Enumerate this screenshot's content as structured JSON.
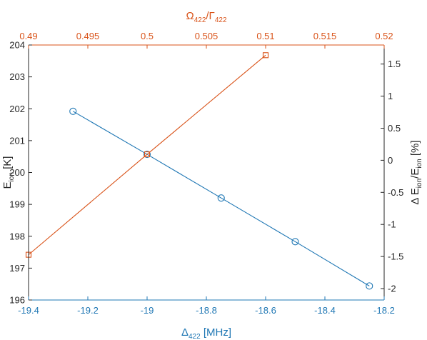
{
  "chart_data": {
    "type": "line",
    "colors": {
      "blue": "#1f77b4",
      "orange": "#d95319",
      "axis": "#262626"
    },
    "bottom_axis": {
      "label_main": "Δ",
      "label_sub": "422",
      "label_unit": " [MHz]",
      "range": [
        -19.4,
        -18.2
      ],
      "ticks": [
        -19.4,
        -19.2,
        -19,
        -18.8,
        -18.6,
        -18.4,
        -18.2
      ],
      "tick_labels": [
        "-19.4",
        "-19.2",
        "-19",
        "-18.8",
        "-18.6",
        "-18.4",
        "-18.2"
      ],
      "color": "#1f77b4"
    },
    "top_axis": {
      "label_main": "Ω",
      "label_sub": "422",
      "label_mid": "/Γ",
      "label_sub2": "422",
      "range": [
        0.49,
        0.52
      ],
      "ticks": [
        0.49,
        0.495,
        0.5,
        0.505,
        0.51,
        0.515,
        0.52
      ],
      "tick_labels": [
        "0.49",
        "0.495",
        "0.5",
        "0.505",
        "0.51",
        "0.515",
        "0.52"
      ],
      "color": "#d95319"
    },
    "left_axis": {
      "label_main": "E",
      "label_sub": "ion",
      "label_unit": " [K]",
      "range": [
        196,
        204
      ],
      "ticks": [
        196,
        197,
        198,
        199,
        200,
        201,
        202,
        203,
        204
      ],
      "tick_labels": [
        "196",
        "197",
        "198",
        "199",
        "200",
        "201",
        "202",
        "203",
        "204"
      ]
    },
    "right_axis": {
      "label_a": "Δ E",
      "label_sub1": "ion",
      "label_b": "/E",
      "label_sub2": "ion",
      "label_c": " [%]",
      "range": [
        -2.178,
        1.797
      ],
      "ticks": [
        -2,
        -1.5,
        -1,
        -0.5,
        0,
        0.5,
        1,
        1.5
      ],
      "tick_labels": [
        "-2",
        "-1.5",
        "-1",
        "-0.5",
        "0",
        "0.5",
        "1",
        "1.5"
      ]
    },
    "series": [
      {
        "axis": "bottom-left",
        "marker": "circle",
        "color": "#1f77b4",
        "x": [
          -19.25,
          -19,
          -18.75,
          -18.5,
          -18.25
        ],
        "y": [
          201.92,
          200.57,
          199.2,
          197.83,
          196.44
        ]
      },
      {
        "axis": "top-left",
        "marker": "square",
        "color": "#d95319",
        "x": [
          0.49,
          0.5,
          0.51
        ],
        "y": [
          197.42,
          200.57,
          203.68
        ]
      }
    ]
  }
}
